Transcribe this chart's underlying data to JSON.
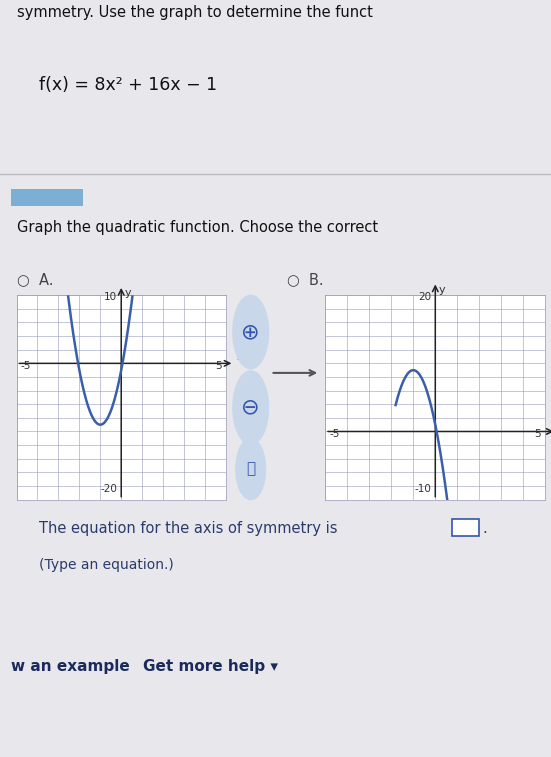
{
  "title_line1": "symmetry. Use the graph to determine the funct",
  "func_label": "f(x) = 8x² + 16x − 1",
  "instruction": "Graph the quadratic function. Choose the correct",
  "option_a": "A.",
  "option_b": "B.",
  "axis_sym_text": "The equation for the axis of symmetry is",
  "hint_text": "(Type an equation.)",
  "footer_left": "w an example",
  "footer_right": "Get more help ▾",
  "bg_color": "#e8e8ec",
  "curve_color": "#3a5fa8",
  "grid_color": "#9999bb",
  "graph_A": {
    "xlim": [
      -5,
      5
    ],
    "ylim": [
      -20,
      10
    ],
    "y_top_label": "10",
    "x_right_label": "5",
    "x_left_label": "-5",
    "y_bottom_label": "-20"
  },
  "graph_B": {
    "xlim": [
      -5,
      5
    ],
    "ylim": [
      -10,
      20
    ],
    "y_top_label": "20",
    "x_right_label": "5",
    "x_left_label": "-5",
    "y_bottom_label": "-10"
  }
}
